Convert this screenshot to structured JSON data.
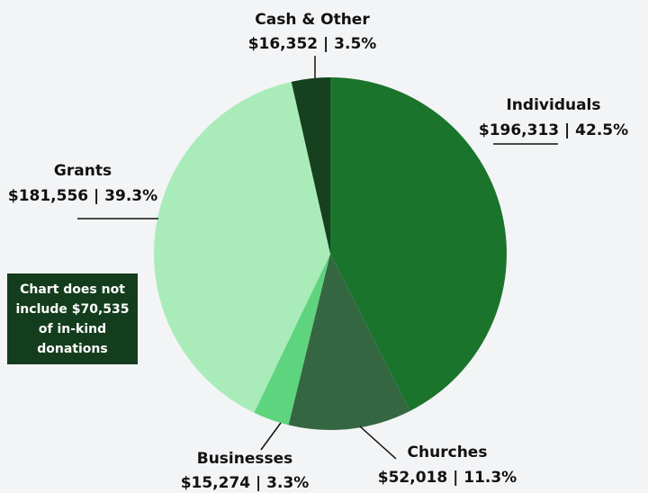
{
  "chart_data": {
    "type": "pie",
    "categories": [
      "Individuals",
      "Churches",
      "Businesses",
      "Grants",
      "Cash & Other"
    ],
    "values": [
      196313,
      52018,
      15274,
      181556,
      16352
    ],
    "value_labels": [
      "$196,313 | 42.5%",
      "$52,018 | 11.3%",
      "$15,274 | 3.3%",
      "$181,556 | 39.3%",
      "$16,352 | 3.5%"
    ],
    "colors": [
      "#1a742c",
      "#356642",
      "#5fd47e",
      "#a9ecb9",
      "#17401f"
    ],
    "note": "Chart does not include $70,535 of in-kind donations"
  }
}
